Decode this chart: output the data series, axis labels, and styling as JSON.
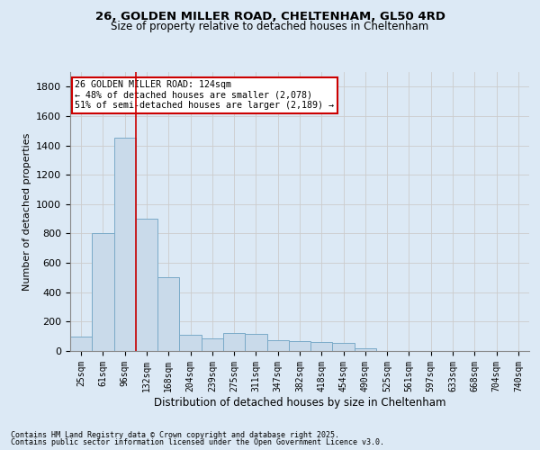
{
  "title_line1": "26, GOLDEN MILLER ROAD, CHELTENHAM, GL50 4RD",
  "title_line2": "Size of property relative to detached houses in Cheltenham",
  "xlabel": "Distribution of detached houses by size in Cheltenham",
  "ylabel": "Number of detached properties",
  "bins": [
    "25sqm",
    "61sqm",
    "96sqm",
    "132sqm",
    "168sqm",
    "204sqm",
    "239sqm",
    "275sqm",
    "311sqm",
    "347sqm",
    "382sqm",
    "418sqm",
    "454sqm",
    "490sqm",
    "525sqm",
    "561sqm",
    "597sqm",
    "633sqm",
    "668sqm",
    "704sqm",
    "740sqm"
  ],
  "bar_heights": [
    100,
    800,
    1450,
    900,
    500,
    110,
    85,
    120,
    115,
    75,
    65,
    60,
    55,
    20,
    0,
    0,
    0,
    0,
    0,
    0,
    0
  ],
  "bar_color": "#c9daea",
  "bar_edge_color": "#7aaac8",
  "grid_color": "#cccccc",
  "vline_color": "#cc0000",
  "annotation_title": "26 GOLDEN MILLER ROAD: 124sqm",
  "annotation_line1": "← 48% of detached houses are smaller (2,078)",
  "annotation_line2": "51% of semi-detached houses are larger (2,189) →",
  "annotation_box_color": "white",
  "annotation_box_edge": "#cc0000",
  "ylim": [
    0,
    1900
  ],
  "yticks": [
    0,
    200,
    400,
    600,
    800,
    1000,
    1200,
    1400,
    1600,
    1800
  ],
  "footnote1": "Contains HM Land Registry data © Crown copyright and database right 2025.",
  "footnote2": "Contains public sector information licensed under the Open Government Licence v3.0.",
  "background_color": "#dce9f5"
}
